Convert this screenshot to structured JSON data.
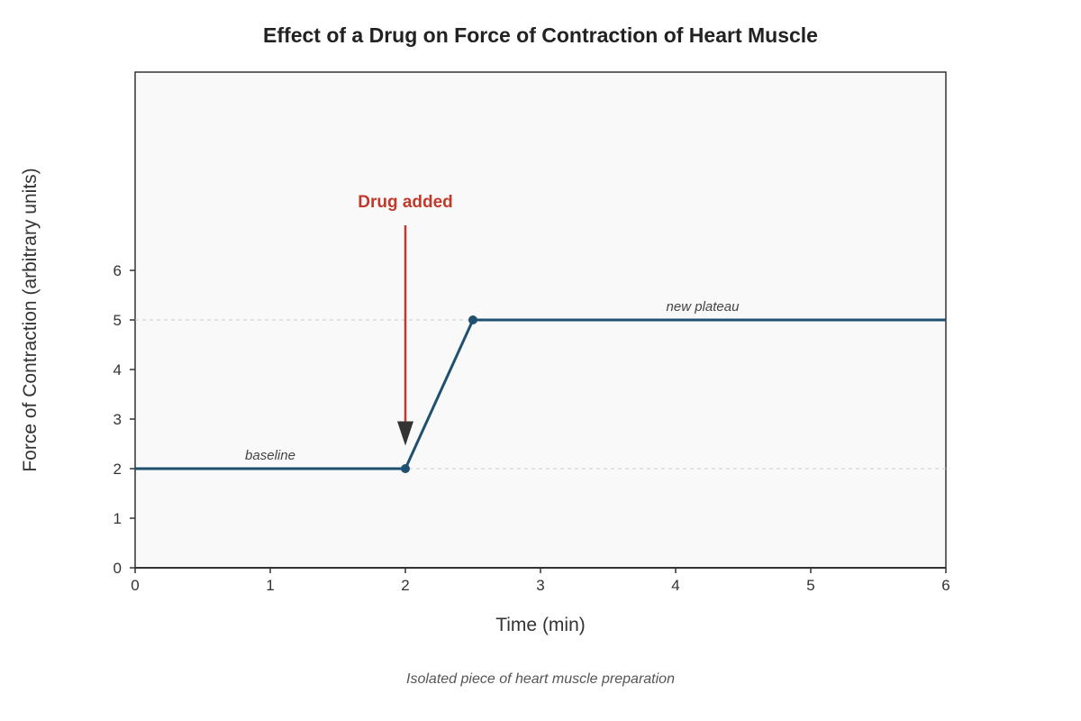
{
  "chart_data": {
    "type": "line",
    "title": "Effect of a Drug on Force of Contraction of Heart Muscle",
    "caption": "Isolated piece of heart muscle preparation",
    "xlabel": "Time (min)",
    "ylabel": "Force of Contraction (arbitrary units)",
    "xlim": [
      0,
      6
    ],
    "ylim": [
      0,
      10
    ],
    "xticks": [
      "0",
      "1",
      "2",
      "3",
      "4",
      "5",
      "6"
    ],
    "yticks": [
      "0",
      "1",
      "2",
      "3",
      "4",
      "5",
      "6"
    ],
    "grid": false,
    "reference_lines": [
      2,
      5
    ],
    "series": [
      {
        "x": [
          0,
          2,
          2.5,
          6
        ],
        "y": [
          2,
          2,
          5,
          5
        ],
        "markers": [
          [
            2,
            2
          ],
          [
            2.5,
            5
          ]
        ]
      }
    ],
    "annotations": [
      {
        "text": "baseline",
        "x": 1,
        "y": 2
      },
      {
        "text": "new plateau",
        "x": 4.2,
        "y": 5
      }
    ],
    "event": {
      "text": "Drug added",
      "x": 2
    }
  },
  "colors": {
    "line": "#1f5070",
    "event": "#c0392b",
    "arrowhead": "#333333",
    "plot_bg": "#f9f9f9",
    "frame": "#333333",
    "refline": "#cccccc"
  }
}
